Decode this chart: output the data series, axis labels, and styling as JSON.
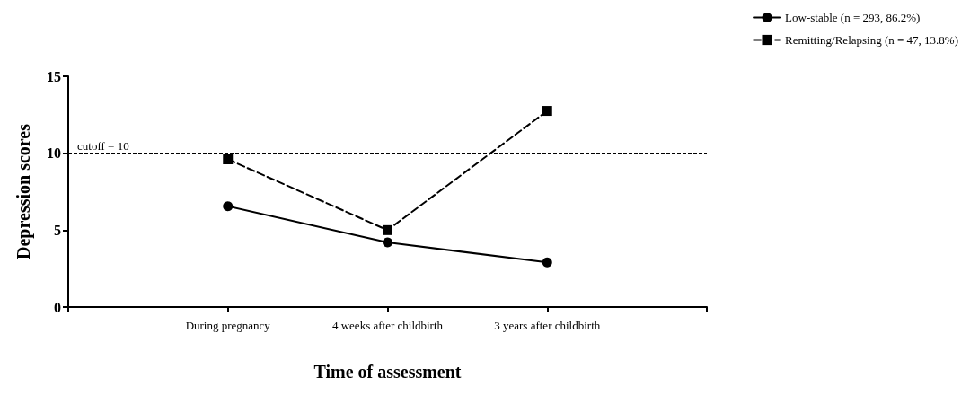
{
  "chart_data": {
    "type": "line",
    "xlabel": "Time of assessment",
    "ylabel": "Depression scores",
    "categories": [
      "During pregnancy",
      "4 weeks after childbirth",
      "3 years after childbirth"
    ],
    "series": [
      {
        "name": "Low-stable (n = 293, 86.2%)",
        "color": "#000000",
        "values": [
          6.55,
          4.2,
          2.9
        ],
        "marker": "circle",
        "line_style": "solid"
      },
      {
        "name": "Remitting/Relapsing (n = 47, 13.8%)",
        "color": "#000000",
        "values": [
          9.6,
          5.0,
          12.75
        ],
        "marker": "square",
        "line_style": "dashed"
      }
    ],
    "ylim": [
      0,
      15
    ],
    "yticks": [
      0,
      5,
      10,
      15
    ],
    "grid": false,
    "legend": "top right",
    "ref_lines": [
      {
        "axis": "y",
        "value": 10,
        "label": "cutoff = 10",
        "line_style": "dashed",
        "color": "#000000"
      }
    ]
  }
}
